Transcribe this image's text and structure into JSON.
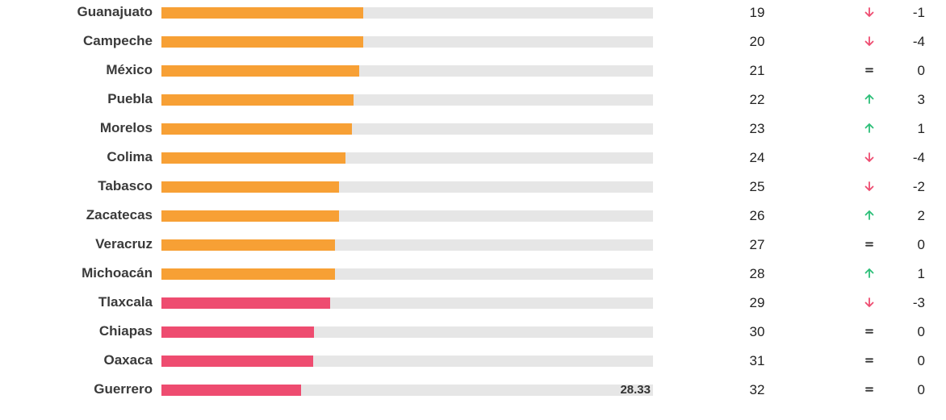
{
  "colors": {
    "orange": "#f7a035",
    "pink": "#ee4c70",
    "track": "#e6e6e6",
    "up": "#2cbf78",
    "down": "#ee4c70",
    "equal": "#333333"
  },
  "chart_data": {
    "type": "bar",
    "orientation": "horizontal",
    "xlim": [
      0,
      100
    ],
    "categories": [
      "Guanajuato",
      "Campeche",
      "México",
      "Puebla",
      "Morelos",
      "Colima",
      "Tabasco",
      "Zacatecas",
      "Veracruz",
      "Michoacán",
      "Tlaxcala",
      "Chiapas",
      "Oaxaca",
      "Guerrero"
    ],
    "values": [
      41.0,
      41.0,
      40.2,
      39.1,
      38.7,
      37.5,
      36.2,
      36.2,
      35.3,
      35.3,
      34.4,
      31.0,
      30.8,
      28.33
    ],
    "bar_colors": [
      "orange",
      "orange",
      "orange",
      "orange",
      "orange",
      "orange",
      "orange",
      "orange",
      "orange",
      "orange",
      "pink",
      "pink",
      "pink",
      "pink"
    ],
    "value_labels": [
      "",
      "",
      "",
      "",
      "",
      "",
      "",
      "",
      "",
      "",
      "",
      "",
      "",
      "28.33"
    ],
    "ranks": [
      "19",
      "20",
      "21",
      "22",
      "23",
      "24",
      "25",
      "26",
      "27",
      "28",
      "29",
      "30",
      "31",
      "32"
    ],
    "trends": [
      "down",
      "down",
      "equal",
      "up",
      "up",
      "down",
      "down",
      "up",
      "equal",
      "up",
      "down",
      "equal",
      "equal",
      "equal"
    ],
    "changes": [
      "-1",
      "-4",
      "0",
      "3",
      "1",
      "-4",
      "-2",
      "2",
      "0",
      "1",
      "-3",
      "0",
      "0",
      "0"
    ]
  }
}
